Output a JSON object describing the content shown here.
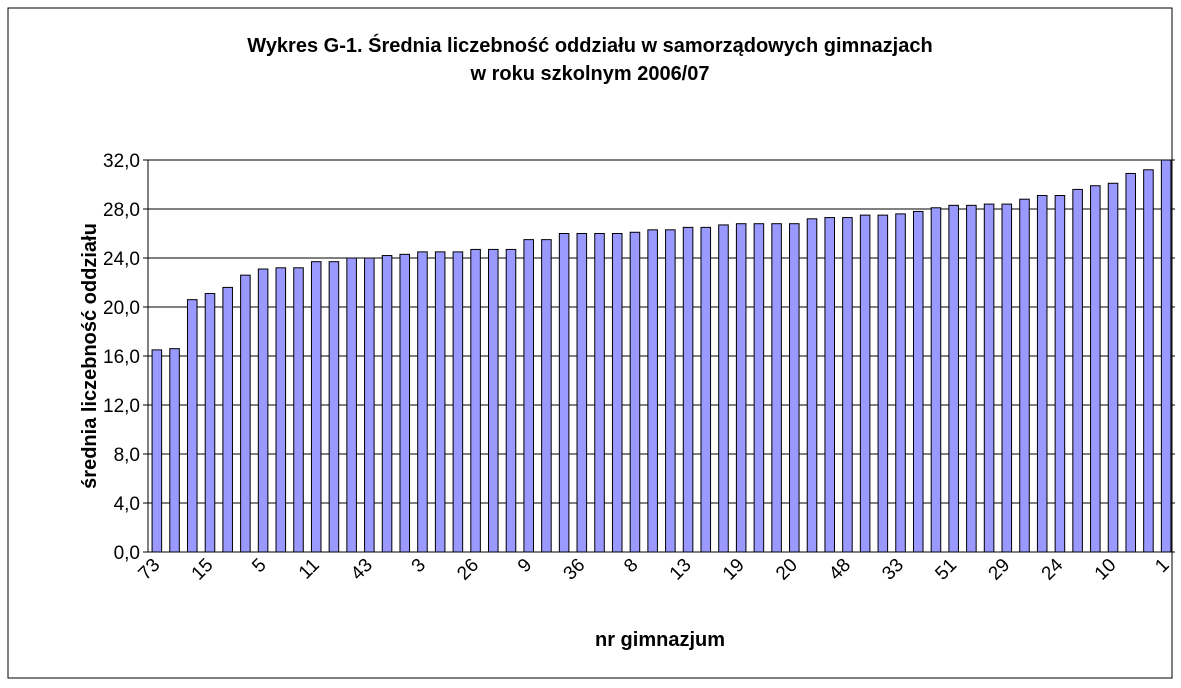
{
  "chart_data": {
    "type": "bar",
    "title": [
      "Wykres G-1. Średnia liczebność oddziału w samorządowych gimnazjach",
      "w roku szkolnym 2006/07"
    ],
    "x_label": "nr gimnazjum",
    "y_label": "średnia liczebność oddziału",
    "categories": [
      "73",
      null,
      null,
      "15",
      null,
      null,
      "5",
      null,
      null,
      "11",
      null,
      null,
      "43",
      null,
      null,
      "3",
      null,
      null,
      "26",
      null,
      null,
      "9",
      null,
      null,
      "36",
      null,
      null,
      "8",
      null,
      null,
      "13",
      null,
      null,
      "19",
      null,
      null,
      "20",
      null,
      null,
      "48",
      null,
      null,
      "33",
      null,
      null,
      "51",
      null,
      null,
      "29",
      null,
      null,
      "24",
      null,
      null,
      "10",
      null,
      null,
      "1"
    ],
    "values": [
      16.5,
      16.6,
      20.6,
      21.1,
      21.6,
      22.6,
      23.1,
      23.2,
      23.2,
      23.7,
      23.7,
      24.0,
      24.0,
      24.2,
      24.3,
      24.5,
      24.5,
      24.5,
      24.7,
      24.7,
      24.7,
      25.5,
      25.5,
      26.0,
      26.0,
      26.0,
      26.0,
      26.1,
      26.3,
      26.3,
      26.5,
      26.5,
      26.7,
      26.8,
      26.8,
      26.8,
      26.8,
      27.2,
      27.3,
      27.3,
      27.5,
      27.5,
      27.6,
      27.8,
      28.1,
      28.3,
      28.3,
      28.4,
      28.4,
      28.8,
      29.1,
      29.1,
      29.6,
      29.9,
      30.1,
      30.9,
      31.2,
      32.0
    ],
    "color": "#9999ff",
    "ylim": [
      0,
      32
    ],
    "yticks": [
      {
        "value": 0,
        "label": "0,0"
      },
      {
        "value": 4,
        "label": "4,0"
      },
      {
        "value": 8,
        "label": "8,0"
      },
      {
        "value": 12,
        "label": "12,0"
      },
      {
        "value": 16,
        "label": "16,0"
      },
      {
        "value": 20,
        "label": "20,0"
      },
      {
        "value": 24,
        "label": "24,0"
      },
      {
        "value": 28,
        "label": "28,0"
      },
      {
        "value": 32,
        "label": "32,0"
      }
    ],
    "grid": true
  }
}
